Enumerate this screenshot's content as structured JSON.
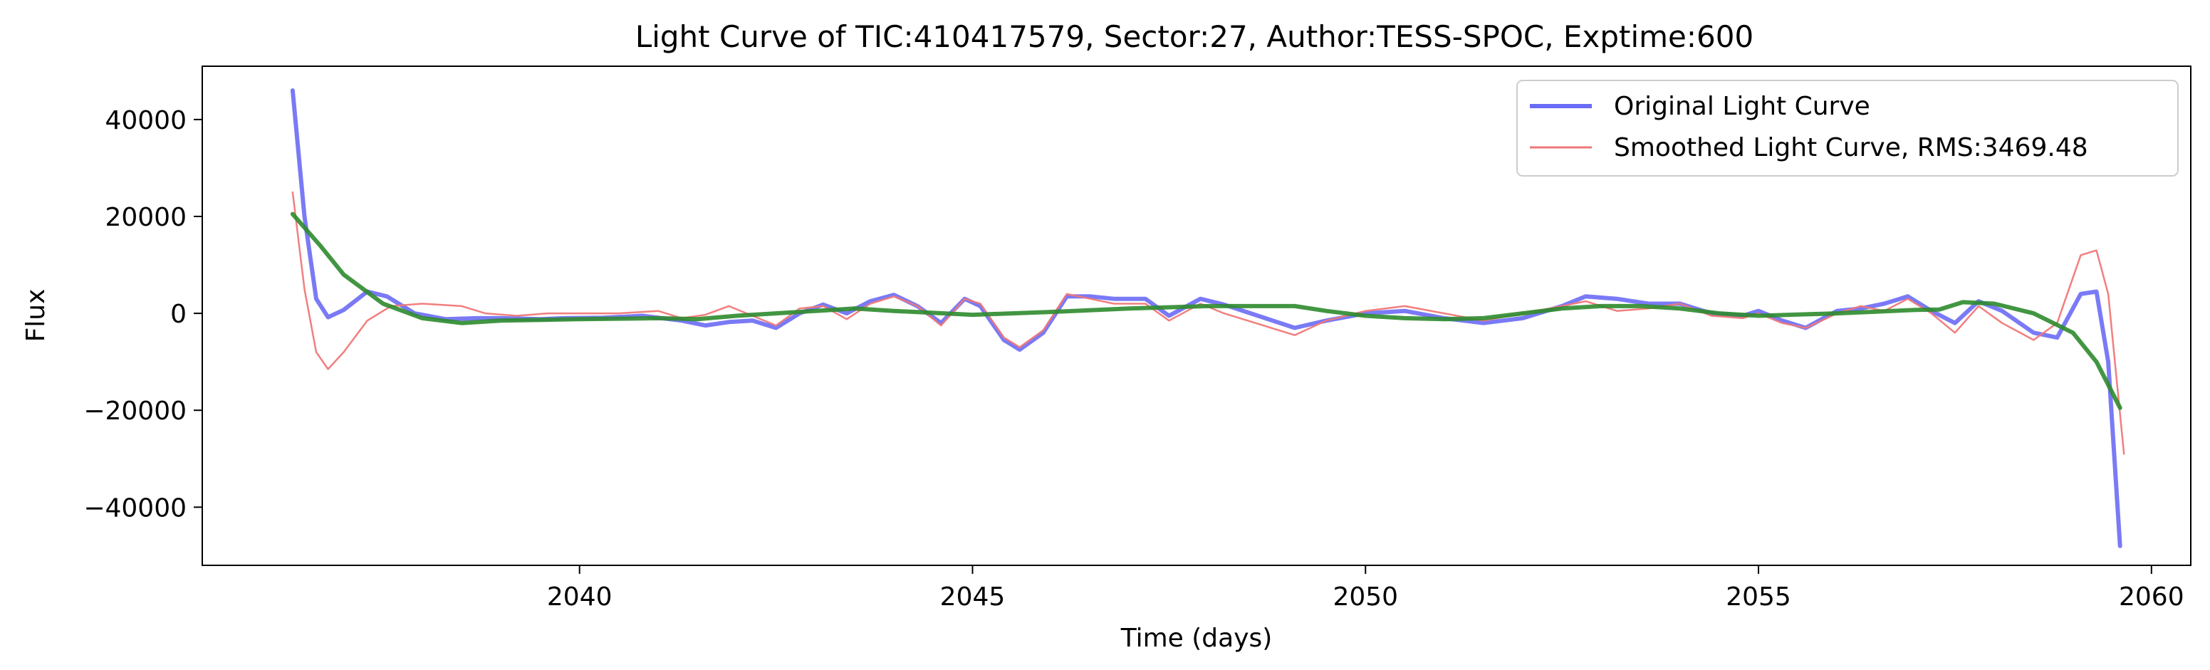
{
  "chart_data": {
    "type": "line",
    "title": "Light Curve of TIC:410417579, Sector:27, Author:TESS-SPOC, Exptime:600",
    "xlabel": "Time (days)",
    "ylabel": "Flux",
    "xlim": [
      2035.2,
      2060.5
    ],
    "ylim": [
      -52000,
      51000
    ],
    "xticks": [
      2040,
      2045,
      2050,
      2055,
      2060
    ],
    "xtick_labels": [
      "2040",
      "2045",
      "2050",
      "2055",
      "2060"
    ],
    "yticks": [
      -40000,
      -20000,
      0,
      20000,
      40000
    ],
    "ytick_labels": [
      "−40000",
      "−20000",
      "0",
      "20000",
      "40000"
    ],
    "grid": false,
    "legend_position": "top-right",
    "series": [
      {
        "name": "Original Light Curve",
        "color": "#6b6bf5",
        "points": [
          [
            2036.35,
            46000
          ],
          [
            2036.5,
            20000
          ],
          [
            2036.65,
            3000
          ],
          [
            2036.8,
            -800
          ],
          [
            2037.0,
            700
          ],
          [
            2037.3,
            4500
          ],
          [
            2037.55,
            3500
          ],
          [
            2037.9,
            0
          ],
          [
            2038.3,
            -1200
          ],
          [
            2038.7,
            -1000
          ],
          [
            2039.0,
            -1000
          ],
          [
            2039.5,
            -1200
          ],
          [
            2039.8,
            -1000
          ],
          [
            2040.3,
            -900
          ],
          [
            2040.8,
            -500
          ],
          [
            2041.3,
            -1500
          ],
          [
            2041.6,
            -2500
          ],
          [
            2041.9,
            -1800
          ],
          [
            2042.2,
            -1500
          ],
          [
            2042.5,
            -3000
          ],
          [
            2042.8,
            0
          ],
          [
            2043.1,
            1800
          ],
          [
            2043.4,
            0
          ],
          [
            2043.7,
            2500
          ],
          [
            2044.0,
            3800
          ],
          [
            2044.3,
            1500
          ],
          [
            2044.6,
            -2000
          ],
          [
            2044.9,
            3000
          ],
          [
            2045.1,
            1500
          ],
          [
            2045.4,
            -5500
          ],
          [
            2045.6,
            -7500
          ],
          [
            2045.9,
            -4000
          ],
          [
            2046.2,
            3500
          ],
          [
            2046.5,
            3500
          ],
          [
            2046.8,
            3000
          ],
          [
            2047.2,
            3000
          ],
          [
            2047.5,
            -500
          ],
          [
            2047.9,
            3000
          ],
          [
            2048.2,
            1800
          ],
          [
            2049.1,
            -3000
          ],
          [
            2049.5,
            -1500
          ],
          [
            2050.0,
            0
          ],
          [
            2050.5,
            500
          ],
          [
            2051.0,
            -1000
          ],
          [
            2051.5,
            -2000
          ],
          [
            2052.0,
            -1000
          ],
          [
            2052.5,
            1500
          ],
          [
            2052.8,
            3500
          ],
          [
            2053.2,
            3000
          ],
          [
            2053.6,
            2000
          ],
          [
            2054.0,
            2000
          ],
          [
            2054.4,
            0
          ],
          [
            2054.8,
            -500
          ],
          [
            2055.0,
            500
          ],
          [
            2055.3,
            -1500
          ],
          [
            2055.6,
            -3000
          ],
          [
            2056.0,
            500
          ],
          [
            2056.3,
            1000
          ],
          [
            2056.6,
            2000
          ],
          [
            2056.9,
            3500
          ],
          [
            2057.2,
            500
          ],
          [
            2057.5,
            -2000
          ],
          [
            2057.8,
            2500
          ],
          [
            2058.1,
            500
          ],
          [
            2058.5,
            -4000
          ],
          [
            2058.8,
            -5000
          ],
          [
            2059.1,
            4000
          ],
          [
            2059.3,
            4500
          ],
          [
            2059.45,
            -10000
          ],
          [
            2059.6,
            -48000
          ]
        ]
      },
      {
        "name": "Smoothed Light Curve, RMS:3469.48",
        "color": "#f07878",
        "points": [
          [
            2036.35,
            25000
          ],
          [
            2036.5,
            5000
          ],
          [
            2036.65,
            -8000
          ],
          [
            2036.8,
            -11500
          ],
          [
            2037.0,
            -8000
          ],
          [
            2037.3,
            -1500
          ],
          [
            2037.6,
            1500
          ],
          [
            2038.0,
            2000
          ],
          [
            2038.5,
            1500
          ],
          [
            2038.8,
            0
          ],
          [
            2039.2,
            -500
          ],
          [
            2039.6,
            0
          ],
          [
            2040.0,
            0
          ],
          [
            2040.5,
            0
          ],
          [
            2041.0,
            500
          ],
          [
            2041.3,
            -1000
          ],
          [
            2041.6,
            -300
          ],
          [
            2041.9,
            1500
          ],
          [
            2042.2,
            -500
          ],
          [
            2042.5,
            -2500
          ],
          [
            2042.8,
            1000
          ],
          [
            2043.1,
            1500
          ],
          [
            2043.4,
            -1200
          ],
          [
            2043.7,
            2000
          ],
          [
            2044.0,
            3500
          ],
          [
            2044.3,
            1500
          ],
          [
            2044.6,
            -2500
          ],
          [
            2044.9,
            3000
          ],
          [
            2045.1,
            2000
          ],
          [
            2045.4,
            -5000
          ],
          [
            2045.6,
            -7000
          ],
          [
            2045.9,
            -3500
          ],
          [
            2046.2,
            4000
          ],
          [
            2046.5,
            3000
          ],
          [
            2046.8,
            2000
          ],
          [
            2047.2,
            2000
          ],
          [
            2047.5,
            -1500
          ],
          [
            2047.9,
            2000
          ],
          [
            2048.2,
            0
          ],
          [
            2049.1,
            -4500
          ],
          [
            2049.5,
            -1500
          ],
          [
            2050.0,
            500
          ],
          [
            2050.5,
            1500
          ],
          [
            2051.0,
            0
          ],
          [
            2051.5,
            -1500
          ],
          [
            2052.0,
            0
          ],
          [
            2052.5,
            1500
          ],
          [
            2052.8,
            2500
          ],
          [
            2053.2,
            500
          ],
          [
            2053.6,
            1000
          ],
          [
            2054.0,
            2000
          ],
          [
            2054.4,
            -500
          ],
          [
            2054.8,
            -1000
          ],
          [
            2055.0,
            0
          ],
          [
            2055.3,
            -2000
          ],
          [
            2055.6,
            -3000
          ],
          [
            2056.0,
            0
          ],
          [
            2056.3,
            1500
          ],
          [
            2056.6,
            500
          ],
          [
            2056.9,
            3000
          ],
          [
            2057.2,
            0
          ],
          [
            2057.5,
            -4000
          ],
          [
            2057.8,
            1500
          ],
          [
            2058.1,
            -2000
          ],
          [
            2058.5,
            -5500
          ],
          [
            2058.8,
            -2000
          ],
          [
            2059.1,
            12000
          ],
          [
            2059.3,
            13000
          ],
          [
            2059.45,
            4000
          ],
          [
            2059.65,
            -29000
          ]
        ]
      },
      {
        "name": "",
        "color": "#2e8b2e",
        "points": [
          [
            2036.35,
            20500
          ],
          [
            2036.7,
            14000
          ],
          [
            2037.0,
            8000
          ],
          [
            2037.5,
            2000
          ],
          [
            2038.0,
            -1000
          ],
          [
            2038.5,
            -2000
          ],
          [
            2039.0,
            -1500
          ],
          [
            2040.0,
            -1200
          ],
          [
            2041.0,
            -1000
          ],
          [
            2041.5,
            -1200
          ],
          [
            2042.0,
            -500
          ],
          [
            2043.0,
            500
          ],
          [
            2043.5,
            1000
          ],
          [
            2044.0,
            500
          ],
          [
            2045.0,
            -300
          ],
          [
            2046.0,
            300
          ],
          [
            2047.0,
            1000
          ],
          [
            2048.0,
            1500
          ],
          [
            2049.1,
            1500
          ],
          [
            2049.5,
            500
          ],
          [
            2050.0,
            -500
          ],
          [
            2050.5,
            -1000
          ],
          [
            2051.0,
            -1200
          ],
          [
            2051.5,
            -1000
          ],
          [
            2052.0,
            0
          ],
          [
            2052.5,
            1000
          ],
          [
            2053.0,
            1500
          ],
          [
            2053.5,
            1500
          ],
          [
            2054.0,
            1000
          ],
          [
            2054.5,
            0
          ],
          [
            2055.0,
            -500
          ],
          [
            2056.0,
            0
          ],
          [
            2057.0,
            700
          ],
          [
            2057.3,
            800
          ],
          [
            2057.6,
            2300
          ],
          [
            2058.0,
            2000
          ],
          [
            2058.5,
            0
          ],
          [
            2059.0,
            -4000
          ],
          [
            2059.3,
            -10000
          ],
          [
            2059.6,
            -19500
          ]
        ]
      }
    ]
  }
}
